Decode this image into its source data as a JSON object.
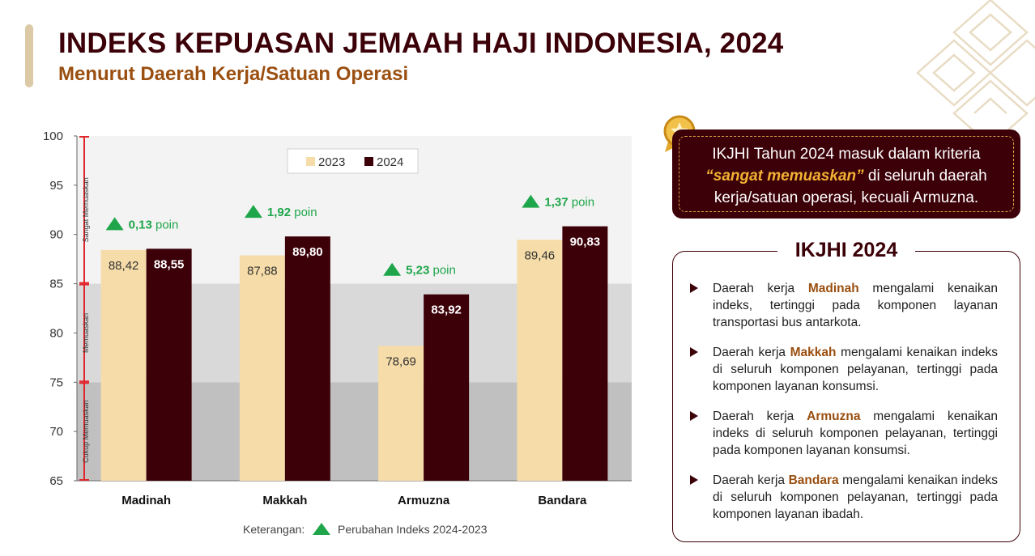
{
  "header": {
    "title": "INDEKS KEPUASAN JEMAAH HAJI INDONESIA, 2024",
    "subtitle": "Menurut Daerah Kerja/Satuan Operasi"
  },
  "chart_data": {
    "type": "bar",
    "categories": [
      "Madinah",
      "Makkah",
      "Armuzna",
      "Bandara"
    ],
    "series": [
      {
        "name": "2023",
        "values": [
          88.42,
          87.88,
          78.69,
          89.46
        ],
        "labels": [
          "88,42",
          "87,88",
          "78,69",
          "89,46"
        ],
        "color": "#f6dca8"
      },
      {
        "name": "2024",
        "values": [
          88.55,
          89.8,
          83.92,
          90.83
        ],
        "labels": [
          "88,55",
          "89,80",
          "83,92",
          "90,83"
        ],
        "color": "#3c0008"
      }
    ],
    "change_labels": [
      "0,13 poin",
      "1,92 poin",
      "5,23 poin",
      "1,37 poin"
    ],
    "yticks": [
      100,
      95,
      90,
      85,
      80,
      75,
      70,
      65
    ],
    "ylim": [
      65,
      100
    ],
    "bands": [
      {
        "label": "Sangat Memuaskan",
        "from": 85,
        "to": 100,
        "color": "#f3f3f3"
      },
      {
        "label": "Memuaskan",
        "from": 75,
        "to": 85,
        "color": "#d9d9d9"
      },
      {
        "label": "Cukup Memuaskan",
        "from": 65,
        "to": 75,
        "color": "#c0c0c0"
      }
    ],
    "legend_position": "top-center",
    "note_label": "Keterangan:",
    "note_text": "Perubahan Indeks 2024-2023",
    "change_color": "#1fa64a"
  },
  "callout": {
    "line1": "IKJHI Tahun 2024 masuk dalam kriteria",
    "highlight": "“sangat memuaskan”",
    "line2_rest": " di seluruh daerah",
    "line3": "kerja/satuan operasi, kecuali Armuzna."
  },
  "panel": {
    "title": "IKJHI 2024",
    "items": [
      {
        "pre": "Daerah kerja ",
        "region": "Madinah",
        "post": " mengalami kenaikan indeks, tertinggi pada komponen layanan transportasi bus antarkota."
      },
      {
        "pre": "Daerah kerja ",
        "region": "Makkah",
        "post": " mengalami kenaikan indeks di seluruh komponen pelayanan, tertinggi pada komponen layanan konsumsi."
      },
      {
        "pre": "Daerah kerja ",
        "region": "Armuzna",
        "post": " mengalami kenaikan indeks di seluruh komponen pelayanan, tertinggi pada komponen layanan konsumsi."
      },
      {
        "pre": "Daerah kerja ",
        "region": "Bandara",
        "post": " mengalami kenaikan indeks di seluruh komponen pelayanan, tertinggi pada komponen layanan ibadah."
      }
    ]
  },
  "icons": {
    "change_marker": "up-triangle-icon",
    "medal": "medal-star-icon",
    "bullet": "arrow-right-icon"
  }
}
